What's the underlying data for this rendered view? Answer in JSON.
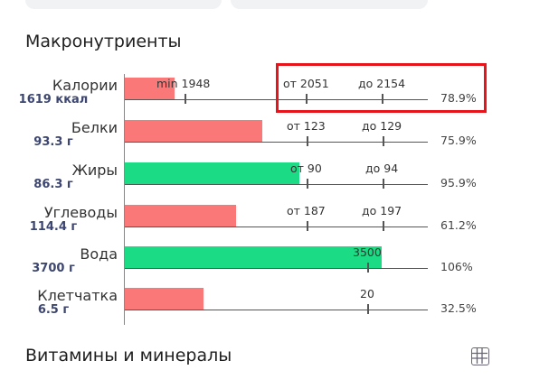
{
  "macronutrients": {
    "title": "Макронутриенты",
    "rows": [
      {
        "name": "Калории",
        "value": "1619 ккал",
        "percent": "78.9%",
        "fraction": 0.789,
        "status": "low",
        "marks": [
          "min 1948",
          "от 2051",
          "до 2154"
        ]
      },
      {
        "name": "Белки",
        "value": "93.3 г",
        "percent": "75.9%",
        "fraction": 0.759,
        "status": "low",
        "marks": [
          "от 123",
          "до 129"
        ]
      },
      {
        "name": "Жиры",
        "value": "86.3 г",
        "percent": "95.9%",
        "fraction": 0.959,
        "status": "ok",
        "marks": [
          "от 90",
          "до 94"
        ]
      },
      {
        "name": "Углеводы",
        "value": "114.4 г",
        "percent": "61.2%",
        "fraction": 0.612,
        "status": "low",
        "marks": [
          "от 187",
          "до 197"
        ]
      },
      {
        "name": "Вода",
        "value": "3700 г",
        "percent": "106%",
        "fraction": 1.06,
        "status": "ok",
        "marks": [
          "3500"
        ]
      },
      {
        "name": "Клетчатка",
        "value": "6.5 г",
        "percent": "32.5%",
        "fraction": 0.325,
        "status": "low",
        "marks": [
          "20"
        ]
      }
    ]
  },
  "vitamins": {
    "title": "Витамины и минералы"
  },
  "colors": {
    "low": "#fb7878",
    "ok": "#1bdc84",
    "highlight": "#e8141c"
  },
  "icons": {
    "grid_toggle": "table-grid-icon"
  }
}
